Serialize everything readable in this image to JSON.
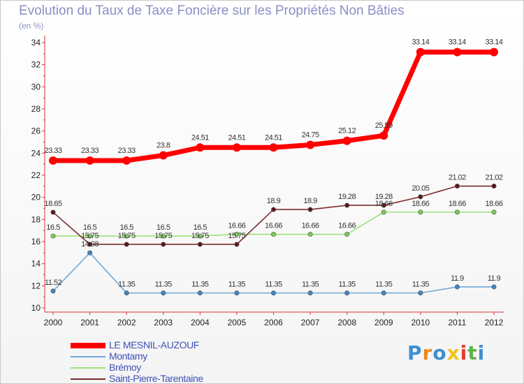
{
  "title": "Evolution du Taux de Taxe Foncière sur les Propriétés Non Bâties",
  "unit_label": "(en %)",
  "chart_data": {
    "type": "line",
    "title": "Evolution du Taux de Taxe Foncière sur les Propriétés Non Bâties",
    "ylabel": "(en %)",
    "xlabel": "",
    "x": [
      "2000",
      "2001",
      "2002",
      "2003",
      "2004",
      "2005",
      "2006",
      "2007",
      "2008",
      "2009",
      "2010",
      "2011",
      "2012"
    ],
    "ylim": [
      10,
      34
    ],
    "yticks": [
      10,
      12,
      14,
      16,
      18,
      20,
      22,
      24,
      26,
      28,
      30,
      32,
      34
    ],
    "grid": false,
    "legend_position": "bottom-left",
    "series": [
      {
        "name": "LE MESNIL-AUZOUF",
        "color": "#ff0000",
        "dot_color": "#ff0000",
        "values": [
          23.33,
          23.33,
          23.33,
          23.8,
          24.51,
          24.51,
          24.51,
          24.75,
          25.12,
          25.59,
          33.14,
          33.14,
          33.14
        ],
        "labels": [
          "23.33",
          "23.33",
          "23.33",
          "23.8",
          "24.51",
          "24.51",
          "24.51",
          "24.75",
          "25.12",
          "25.59",
          "33.14",
          "33.14",
          "33.14"
        ]
      },
      {
        "name": "Montamy",
        "color": "#6fa8d6",
        "dot_color": "#3f86c4",
        "values": [
          11.52,
          14.98,
          11.35,
          11.35,
          11.35,
          11.35,
          11.35,
          11.35,
          11.35,
          11.35,
          11.35,
          11.9,
          11.9
        ],
        "labels": [
          "11.52",
          "14.98",
          "11.35",
          "11.35",
          "11.35",
          "11.35",
          "11.35",
          "11.35",
          "11.35",
          "11.35",
          "11.35",
          "11.9",
          "11.9"
        ]
      },
      {
        "name": "Brémoy",
        "color": "#9de07a",
        "dot_color": "#7ccc55",
        "values": [
          16.5,
          16.5,
          16.5,
          16.5,
          16.5,
          16.66,
          16.66,
          16.66,
          16.66,
          18.66,
          18.66,
          18.66,
          18.66
        ],
        "labels": [
          "16.5",
          "16.5",
          "16.5",
          "16.5",
          "16.5",
          "16.66",
          "16.66",
          "16.66",
          "16.66",
          "18.66",
          "18.66",
          "18.66",
          "18.66"
        ]
      },
      {
        "name": "Saint-Pierre-Tarentaine",
        "color": "#7b2c2c",
        "dot_color": "#5a1a1a",
        "values": [
          18.65,
          15.75,
          15.75,
          15.75,
          15.75,
          15.75,
          18.9,
          18.9,
          19.28,
          19.28,
          20.05,
          21.02,
          21.02
        ],
        "labels": [
          "18.65",
          "15.75",
          "15.75",
          "15.75",
          "15.75",
          "15.75",
          "18.9",
          "18.9",
          "19.28",
          "19.28",
          "20.05",
          "21.02",
          "21.02"
        ]
      }
    ]
  },
  "logo": {
    "letters": [
      "P",
      "r",
      "o",
      "x",
      "i",
      "t",
      "i"
    ],
    "colors": [
      "#3d8fd1",
      "#f08a1c",
      "#3d8fd1",
      "#f2c21b",
      "#e83b2e",
      "#5fb44a",
      "#3d8fd1"
    ]
  }
}
